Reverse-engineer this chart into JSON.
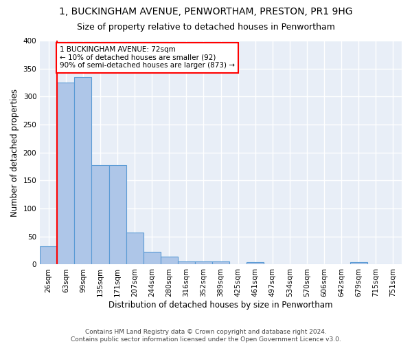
{
  "title": "1, BUCKINGHAM AVENUE, PENWORTHAM, PRESTON, PR1 9HG",
  "subtitle": "Size of property relative to detached houses in Penwortham",
  "xlabel": "Distribution of detached houses by size in Penwortham",
  "ylabel": "Number of detached properties",
  "categories": [
    "26sqm",
    "63sqm",
    "99sqm",
    "135sqm",
    "171sqm",
    "207sqm",
    "244sqm",
    "280sqm",
    "316sqm",
    "352sqm",
    "389sqm",
    "425sqm",
    "461sqm",
    "497sqm",
    "534sqm",
    "570sqm",
    "606sqm",
    "642sqm",
    "679sqm",
    "715sqm",
    "751sqm"
  ],
  "bar_heights": [
    32,
    325,
    335,
    178,
    177,
    57,
    23,
    14,
    6,
    5,
    5,
    0,
    4,
    0,
    0,
    0,
    0,
    0,
    4,
    0,
    0
  ],
  "bar_color": "#aec6e8",
  "bar_edge_color": "#5b9bd5",
  "vline_x": 0.5,
  "annotation_text": "1 BUCKINGHAM AVENUE: 72sqm\n← 10% of detached houses are smaller (92)\n90% of semi-detached houses are larger (873) →",
  "annotation_box_color": "white",
  "annotation_box_edge_color": "red",
  "vline_color": "red",
  "ylim": [
    0,
    400
  ],
  "yticks": [
    0,
    50,
    100,
    150,
    200,
    250,
    300,
    350,
    400
  ],
  "footer_text": "Contains HM Land Registry data © Crown copyright and database right 2024.\nContains public sector information licensed under the Open Government Licence v3.0.",
  "background_color": "#e8eef7",
  "grid_color": "white",
  "title_fontsize": 10,
  "subtitle_fontsize": 9,
  "axis_label_fontsize": 8.5,
  "tick_fontsize": 7.5,
  "footer_fontsize": 6.5,
  "annotation_fontsize": 7.5
}
